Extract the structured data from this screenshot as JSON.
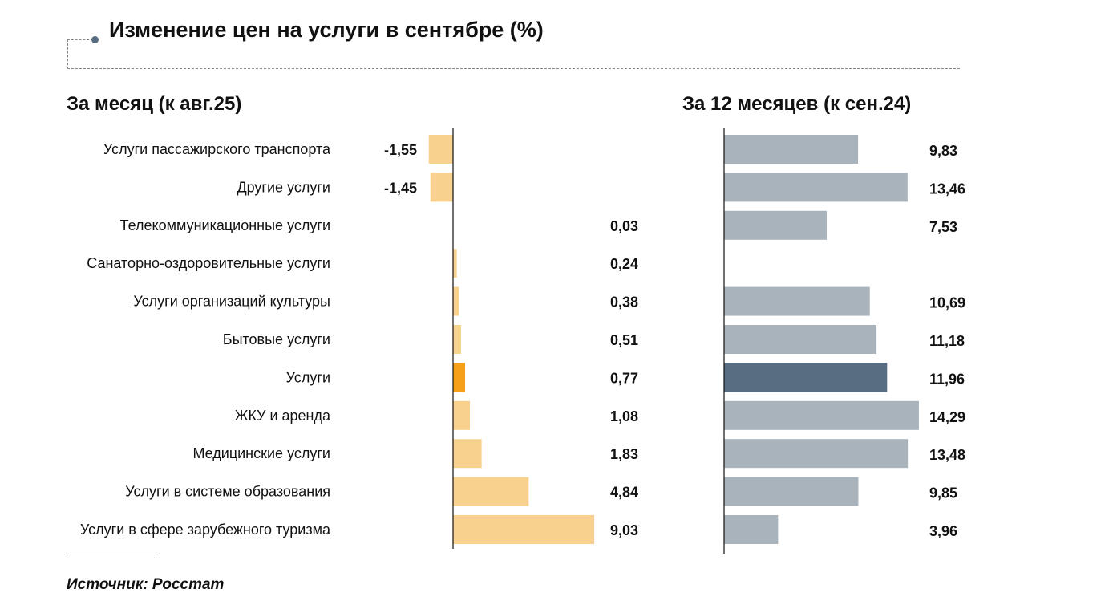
{
  "title": "Изменение цен на услуги в сентябре (%)",
  "source": "Источник: Росстат",
  "chart_data": [
    {
      "type": "bar",
      "orientation": "horizontal",
      "title": "За месяц (к авг.25)",
      "categories": [
        "Услуги пассажирского транспорта",
        "Другие услуги",
        "Телекоммуникационные услуги",
        "Санаторно-оздоровительные услуги",
        "Услуги организаций культуры",
        "Бытовые услуги",
        "Услуги",
        "ЖКУ и аренда",
        "Медицинские услуги",
        "Услуги в системе образования",
        "Услуги в сфере зарубежного туризма"
      ],
      "values": [
        -1.55,
        -1.45,
        0.03,
        0.24,
        0.38,
        0.51,
        0.77,
        1.08,
        1.83,
        4.84,
        9.03
      ],
      "labels": [
        "-1,55",
        "-1,45",
        "0,03",
        "0,24",
        "0,38",
        "0,51",
        "0,77",
        "1,08",
        "1,83",
        "4,84",
        "9,03"
      ],
      "highlight": "Услуги",
      "color": "#f9d18e",
      "highlight_color": "#f6a01a"
    },
    {
      "type": "bar",
      "orientation": "horizontal",
      "title": "За 12 месяцев (к сен.24)",
      "categories": [
        "Услуги пассажирского транспорта",
        "Другие услуги",
        "Телекоммуникационные услуги",
        "Санаторно-оздоровительные услуги",
        "Услуги организаций культуры",
        "Бытовые услуги",
        "Услуги",
        "ЖКУ и аренда",
        "Медицинские услуги",
        "Услуги в системе образования",
        "Услуги в сфере зарубежного туризма"
      ],
      "values": [
        9.83,
        13.46,
        7.53,
        null,
        10.69,
        11.18,
        11.96,
        14.29,
        13.48,
        9.85,
        3.96
      ],
      "labels": [
        "9,83",
        "13,46",
        "7,53",
        "",
        "10,69",
        "11,18",
        "11,96",
        "14,29",
        "13,48",
        "9,85",
        "3,96"
      ],
      "highlight": "Услуги",
      "color": "#a9b3bc",
      "highlight_color": "#586d82"
    }
  ]
}
